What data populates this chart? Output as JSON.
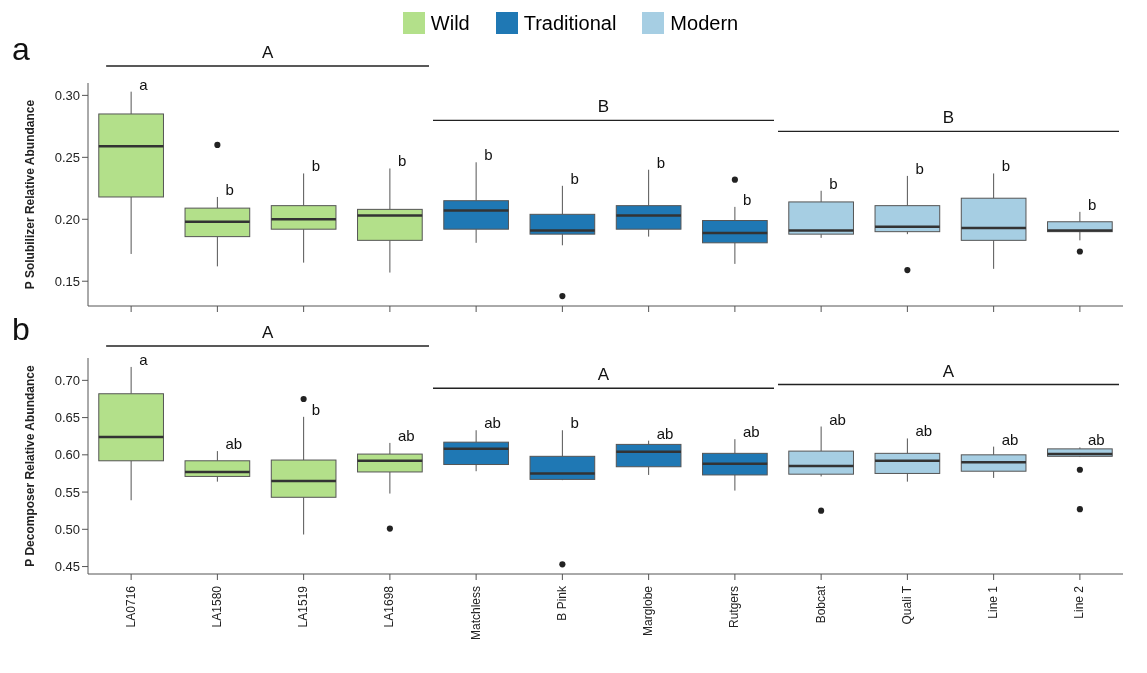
{
  "chart_data": [
    {
      "type": "box",
      "title": "a",
      "ylabel": "P Solubilizer Relative Abundance",
      "legend": "top",
      "tick_labels": "y",
      "categories": [
        "LA0716",
        "LA1580",
        "LA1519",
        "LA1698",
        "Matchless",
        "B Pink",
        "Marglobe",
        "Rutgers",
        "Bobcat",
        "Quali T",
        "Line 1",
        "Line 2"
      ],
      "ylim": [
        0.13,
        0.31
      ],
      "yticks": [
        0.15,
        {
          "value": 0.2,
          "label": "0.20"
        },
        0.25,
        {
          "value": 0.3,
          "label": "0.30"
        }
      ],
      "series": [
        {
          "name": "Wild",
          "color": "#b3e08a",
          "boxes": [
            {
              "low": 0.172,
              "q1": 0.218,
              "median": 0.259,
              "q3": 0.285,
              "high": 0.303
            },
            {
              "low": 0.162,
              "q1": 0.186,
              "median": 0.198,
              "q3": 0.209,
              "high": 0.218,
              "outliers": [
                0.26
              ]
            },
            {
              "low": 0.165,
              "q1": 0.192,
              "median": 0.2,
              "q3": 0.211,
              "high": 0.237
            },
            {
              "low": 0.157,
              "q1": 0.183,
              "median": 0.203,
              "q3": 0.208,
              "high": 0.241
            },
            null,
            null,
            null,
            null,
            null,
            null,
            null,
            null
          ]
        },
        {
          "name": "Traditional",
          "color": "#1f78b4",
          "boxes": [
            null,
            null,
            null,
            null,
            {
              "low": 0.181,
              "q1": 0.192,
              "median": 0.207,
              "q3": 0.215,
              "high": 0.246
            },
            {
              "low": 0.179,
              "q1": 0.188,
              "median": 0.191,
              "q3": 0.204,
              "high": 0.227,
              "outliers": [
                0.138
              ]
            },
            {
              "low": 0.186,
              "q1": 0.192,
              "median": 0.203,
              "q3": 0.211,
              "high": 0.24
            },
            {
              "low": 0.164,
              "q1": 0.181,
              "median": 0.189,
              "q3": 0.199,
              "high": 0.21,
              "outliers": [
                0.232
              ]
            },
            null,
            null,
            null,
            null
          ]
        },
        {
          "name": "Modern",
          "color": "#a6cee3",
          "boxes": [
            null,
            null,
            null,
            null,
            null,
            null,
            null,
            null,
            {
              "low": 0.185,
              "q1": 0.188,
              "median": 0.191,
              "q3": 0.214,
              "high": 0.223
            },
            {
              "low": 0.188,
              "q1": 0.19,
              "median": 0.194,
              "q3": 0.211,
              "high": 0.235,
              "outliers": [
                0.159
              ]
            },
            {
              "low": 0.16,
              "q1": 0.183,
              "median": 0.193,
              "q3": 0.217,
              "high": 0.237
            },
            {
              "low": 0.183,
              "q1": 0.19,
              "median": 0.191,
              "q3": 0.198,
              "high": 0.206,
              "outliers": [
                0.174
              ]
            }
          ]
        }
      ],
      "annotations": [
        "A",
        "B",
        "B",
        {
          "text": "a",
          "x": "LA0716",
          "y": 0.303
        },
        {
          "text": "b",
          "x": "LA1580",
          "y": 0.218
        },
        {
          "text": "b",
          "x": "LA1519",
          "y": 0.237
        },
        {
          "text": "b",
          "x": "LA1698",
          "y": 0.241
        },
        {
          "text": "b",
          "x": "Matchless",
          "y": 0.246
        },
        {
          "text": "b",
          "x": "B Pink",
          "y": 0.227
        },
        {
          "text": "b",
          "x": "Marglobe",
          "y": 0.24
        },
        {
          "text": "b",
          "x": "Rutgers",
          "y": 0.21
        },
        {
          "text": "b",
          "x": "Bobcat",
          "y": 0.223
        },
        {
          "text": "b",
          "x": "Quali T",
          "y": 0.235
        },
        {
          "text": "b",
          "x": "Line 1",
          "y": 0.237
        },
        {
          "text": "b",
          "x": "Line 2",
          "y": 0.206
        }
      ]
    },
    {
      "type": "box",
      "title": "b",
      "ylabel": "P Decomposer Relative Abundance",
      "categories": [
        "LA0716",
        "LA1580",
        "LA1519",
        "LA1698",
        "Matchless",
        "B Pink",
        "Marglobe",
        "Rutgers",
        "Bobcat",
        "Quali T",
        "Line 1",
        "Line 2"
      ],
      "ylim": [
        0.44,
        0.73
      ],
      "yticks": [
        0.45,
        {
          "value": 0.5,
          "label": "0.50"
        },
        0.55,
        {
          "value": 0.6,
          "label": "0.60"
        },
        0.65,
        {
          "value": 0.7,
          "label": "0.70"
        }
      ],
      "series": [
        {
          "color": "#b3e08a",
          "boxes": [
            {
              "low": 0.539,
              "q1": 0.592,
              "median": 0.624,
              "q3": 0.682,
              "high": 0.718
            },
            {
              "low": 0.564,
              "q1": 0.571,
              "median": 0.577,
              "q3": 0.592,
              "high": 0.605
            },
            {
              "low": 0.493,
              "q1": 0.543,
              "median": 0.565,
              "q3": 0.593,
              "high": 0.651,
              "outliers": [
                0.675
              ]
            },
            {
              "low": 0.548,
              "q1": 0.577,
              "median": 0.592,
              "q3": 0.601,
              "high": 0.616,
              "outliers": [
                0.501
              ]
            },
            null,
            null,
            null,
            null,
            null,
            null,
            null,
            null
          ]
        },
        {
          "color": "#1f78b4",
          "boxes": [
            null,
            null,
            null,
            null,
            {
              "low": 0.578,
              "q1": 0.587,
              "median": 0.608,
              "q3": 0.617,
              "high": 0.633
            },
            {
              "low": 0.566,
              "q1": 0.567,
              "median": 0.575,
              "q3": 0.598,
              "high": 0.633,
              "outliers": [
                0.453
              ]
            },
            {
              "low": 0.573,
              "q1": 0.584,
              "median": 0.604,
              "q3": 0.614,
              "high": 0.619
            },
            {
              "low": 0.552,
              "q1": 0.573,
              "median": 0.588,
              "q3": 0.602,
              "high": 0.621
            },
            null,
            null,
            null,
            null
          ]
        },
        {
          "color": "#a6cee3",
          "boxes": [
            null,
            null,
            null,
            null,
            null,
            null,
            null,
            null,
            {
              "low": 0.571,
              "q1": 0.574,
              "median": 0.585,
              "q3": 0.605,
              "high": 0.638,
              "outliers": [
                0.525
              ]
            },
            {
              "low": 0.564,
              "q1": 0.575,
              "median": 0.592,
              "q3": 0.602,
              "high": 0.622
            },
            {
              "low": 0.569,
              "q1": 0.578,
              "median": 0.59,
              "q3": 0.6,
              "high": 0.611
            },
            {
              "low": 0.597,
              "q1": 0.598,
              "median": 0.601,
              "q3": 0.608,
              "high": 0.61,
              "outliers": [
                0.58,
                0.527
              ]
            }
          ]
        }
      ],
      "annotations": [
        "A",
        "A",
        "A",
        {
          "text": "a",
          "x": "LA0716",
          "y": 0.718
        },
        {
          "text": "ab",
          "x": "LA1580",
          "y": 0.605
        },
        {
          "text": "b",
          "x": "LA1519",
          "y": 0.651
        },
        {
          "text": "ab",
          "x": "LA1698",
          "y": 0.616
        },
        {
          "text": "ab",
          "x": "Matchless",
          "y": 0.633
        },
        {
          "text": "b",
          "x": "B Pink",
          "y": 0.633
        },
        {
          "text": "ab",
          "x": "Marglobe",
          "y": 0.619
        },
        {
          "text": "ab",
          "x": "Rutgers",
          "y": 0.621
        },
        {
          "text": "ab",
          "x": "Bobcat",
          "y": 0.638
        },
        {
          "text": "ab",
          "x": "Quali T",
          "y": 0.622
        },
        {
          "text": "ab",
          "x": "Line 1",
          "y": 0.611
        },
        {
          "text": "ab",
          "x": "Line 2",
          "y": 0.61
        }
      ]
    }
  ]
}
